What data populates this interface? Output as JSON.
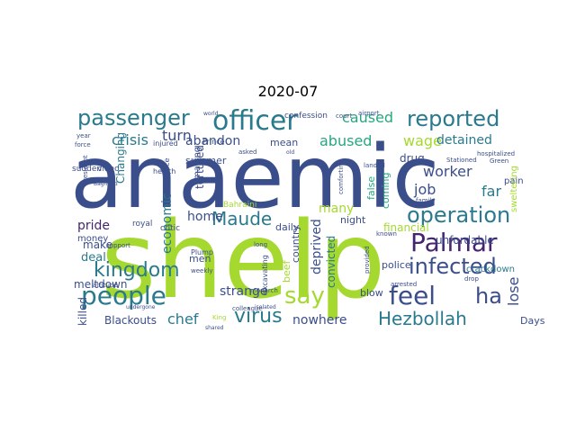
{
  "title": "2020-07",
  "chart_data": {
    "type": "wordcloud",
    "title": "2020-07",
    "words": [
      {
        "text": "anaemic",
        "color": "#3b4e8c"
      },
      {
        "text": "shelp",
        "color": "#a6d930"
      },
      {
        "text": "people",
        "color": "#2a7a8e"
      },
      {
        "text": "officer",
        "color": "#2a7a8e"
      },
      {
        "text": "passenger",
        "color": "#2a7a8e"
      },
      {
        "text": "reported",
        "color": "#2a7a8e"
      },
      {
        "text": "Palmar",
        "color": "#46246e"
      },
      {
        "text": "operation",
        "color": "#2a7a8e"
      },
      {
        "text": "kingdom",
        "color": "#2a7a8e"
      },
      {
        "text": "feel",
        "color": "#3b4e8c"
      },
      {
        "text": "say",
        "color": "#a6d930"
      },
      {
        "text": "infected",
        "color": "#3b4e8c"
      },
      {
        "text": "virus",
        "color": "#2a7a8e"
      },
      {
        "text": "Hezbollah",
        "color": "#2a7a8e"
      },
      {
        "text": "Maude",
        "color": "#2a7a8e"
      },
      {
        "text": "ha",
        "color": "#3b4e8c"
      },
      {
        "text": "caused",
        "color": "#28a682"
      },
      {
        "text": "abused",
        "color": "#28a682"
      },
      {
        "text": "crisis",
        "color": "#2a7a8e"
      },
      {
        "text": "turn",
        "color": "#3b4e8c"
      },
      {
        "text": "wage",
        "color": "#a6d930"
      },
      {
        "text": "detained",
        "color": "#2a7a8e"
      },
      {
        "text": "worker",
        "color": "#3b4e8c"
      },
      {
        "text": "job",
        "color": "#3b4e8c"
      },
      {
        "text": "far",
        "color": "#2a7a8e"
      },
      {
        "text": "lose",
        "color": "#3b4e8c"
      },
      {
        "text": "chef",
        "color": "#2a7a8e"
      },
      {
        "text": "strange",
        "color": "#3b4e8c"
      },
      {
        "text": "nowhere",
        "color": "#3b4e8c"
      },
      {
        "text": "economic",
        "color": "#2a7a8e"
      },
      {
        "text": "abandon",
        "color": "#3b4e8c"
      },
      {
        "text": "deprived",
        "color": "#3b4e8c"
      },
      {
        "text": "many",
        "color": "#a6d930"
      },
      {
        "text": "home",
        "color": "#3b4e8c"
      },
      {
        "text": "tortured",
        "color": "#3b4e8c"
      },
      {
        "text": "Changing",
        "color": "#2a7a8e"
      },
      {
        "text": "pride",
        "color": "#46246e"
      },
      {
        "text": "make",
        "color": "#3b4e8c"
      },
      {
        "text": "deal",
        "color": "#2a7a8e"
      },
      {
        "text": "money",
        "color": "#3b4e8c"
      },
      {
        "text": "meltdown",
        "color": "#3b4e8c"
      },
      {
        "text": "killed",
        "color": "#3b4e8c"
      },
      {
        "text": "Blackouts",
        "color": "#3b4e8c"
      },
      {
        "text": "summer",
        "color": "#3b4e8c"
      },
      {
        "text": "mean",
        "color": "#3b4e8c"
      },
      {
        "text": "drug",
        "color": "#3b4e8c"
      },
      {
        "text": "false",
        "color": "#28a682"
      },
      {
        "text": "coming",
        "color": "#28a682"
      },
      {
        "text": "financial",
        "color": "#a6d930"
      },
      {
        "text": "unfordable",
        "color": "#3b4e8c"
      },
      {
        "text": "night",
        "color": "#3b4e8c"
      },
      {
        "text": "country",
        "color": "#3b4e8c"
      },
      {
        "text": "daily",
        "color": "#3b4e8c"
      },
      {
        "text": "beef",
        "color": "#a6d930"
      },
      {
        "text": "convicted",
        "color": "#2a7a8e"
      },
      {
        "text": "police",
        "color": "#3b4e8c"
      },
      {
        "text": "blow",
        "color": "#3b4e8c"
      },
      {
        "text": "crackdown",
        "color": "#2a7a8e"
      },
      {
        "text": "Days",
        "color": "#3b4e8c"
      },
      {
        "text": "pain",
        "color": "#3b4e8c"
      },
      {
        "text": "sweltering",
        "color": "#a6d930"
      },
      {
        "text": "men",
        "color": "#3b4e8c"
      },
      {
        "text": "making",
        "color": "#3b4e8c"
      },
      {
        "text": "confession",
        "color": "#3b4e8c"
      },
      {
        "text": "critic",
        "color": "#3b4e8c"
      },
      {
        "text": "Bahraini",
        "color": "#a6d930"
      },
      {
        "text": "royal",
        "color": "#3b4e8c"
      },
      {
        "text": "sudden",
        "color": "#3b4e8c"
      },
      {
        "text": "video",
        "color": "#3b4e8c"
      },
      {
        "text": "health",
        "color": "#3b4e8c"
      },
      {
        "text": "injured",
        "color": "#3b4e8c"
      },
      {
        "text": "Prince",
        "color": "#3b4e8c"
      },
      {
        "text": "force",
        "color": "#3b4e8c"
      },
      {
        "text": "year",
        "color": "#3b4e8c"
      },
      {
        "text": "court",
        "color": "#3b4e8c"
      },
      {
        "text": "airport",
        "color": "#3b4e8c"
      },
      {
        "text": "Stationed",
        "color": "#3b4e8c"
      },
      {
        "text": "Green",
        "color": "#3b4e8c"
      },
      {
        "text": "hospitalized",
        "color": "#3b4e8c"
      },
      {
        "text": "landed",
        "color": "#3b4e8c"
      },
      {
        "text": "comforting",
        "color": "#3b4e8c"
      },
      {
        "text": "family",
        "color": "#3b4e8c"
      },
      {
        "text": "excavating",
        "color": "#3b4e8c"
      },
      {
        "text": "colleague",
        "color": "#3b4e8c"
      },
      {
        "text": "Plump",
        "color": "#3b4e8c"
      },
      {
        "text": "weekly",
        "color": "#3b4e8c"
      },
      {
        "text": "monarch",
        "color": "#3b4e8c"
      },
      {
        "text": "attitude",
        "color": "#3b4e8c"
      },
      {
        "text": "support",
        "color": "#3b4e8c"
      },
      {
        "text": "undergone",
        "color": "#3b4e8c"
      },
      {
        "text": "arrested",
        "color": "#3b4e8c"
      },
      {
        "text": "provided",
        "color": "#3b4e8c"
      },
      {
        "text": "King",
        "color": "#a6d930"
      },
      {
        "text": "isolated",
        "color": "#3b4e8c"
      },
      {
        "text": "long",
        "color": "#3b4e8c"
      },
      {
        "text": "asked",
        "color": "#3b4e8c"
      },
      {
        "text": "old",
        "color": "#3b4e8c"
      },
      {
        "text": "intelligence",
        "color": "#3b4e8c"
      },
      {
        "text": "President",
        "color": "#3b4e8c"
      },
      {
        "text": "Baghdad",
        "color": "#3b4e8c"
      },
      {
        "text": "world",
        "color": "#3b4e8c"
      },
      {
        "text": "drop",
        "color": "#3b4e8c"
      },
      {
        "text": "shared",
        "color": "#3b4e8c"
      },
      {
        "text": "known",
        "color": "#3b4e8c"
      }
    ]
  }
}
